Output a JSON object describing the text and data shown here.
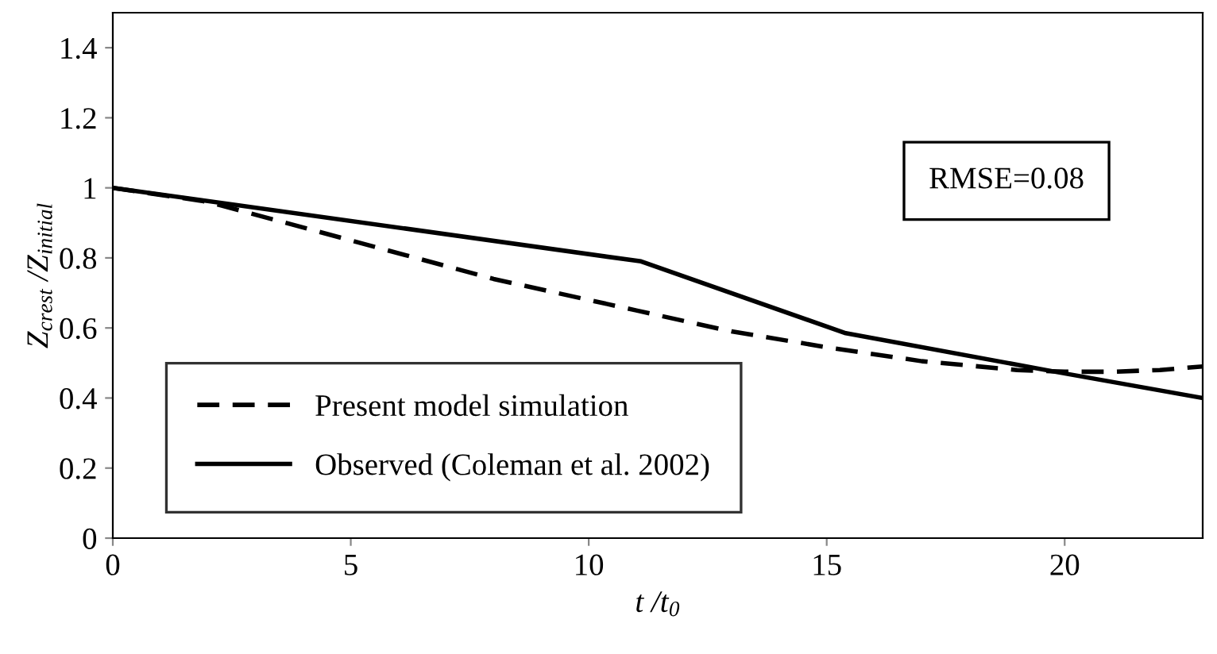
{
  "chart_data": {
    "type": "line",
    "xlabel": "t /t$_{0}$",
    "ylabel": "Z$_{crest}$ /Z$_{initial}$",
    "xlim": [
      0,
      22.9
    ],
    "ylim": [
      0,
      1.5
    ],
    "xticks": [
      0,
      5,
      10,
      15,
      20
    ],
    "yticks": [
      0,
      0.2,
      0.4,
      0.6,
      0.8,
      1,
      1.2,
      1.4
    ],
    "grid": false,
    "legend": "bottom left",
    "annotations": [
      "RMSE=0.08"
    ],
    "series": [
      {
        "name": "Present model simulation",
        "color": "#000000",
        "line_style": "dashed",
        "x": [
          0,
          2,
          5,
          8,
          11,
          13,
          15,
          17,
          19,
          20,
          21,
          22,
          22.9
        ],
        "values": [
          1,
          0.96,
          0.85,
          0.74,
          0.65,
          0.59,
          0.545,
          0.505,
          0.48,
          0.475,
          0.475,
          0.48,
          0.49
        ]
      },
      {
        "name": "Observed (Coleman et al. 2002)",
        "color": "#000000",
        "line_style": "solid",
        "x": [
          0,
          11.1,
          15.4,
          19.8,
          22.9
        ],
        "values": [
          1,
          0.79,
          0.585,
          0.475,
          0.4
        ]
      }
    ]
  }
}
